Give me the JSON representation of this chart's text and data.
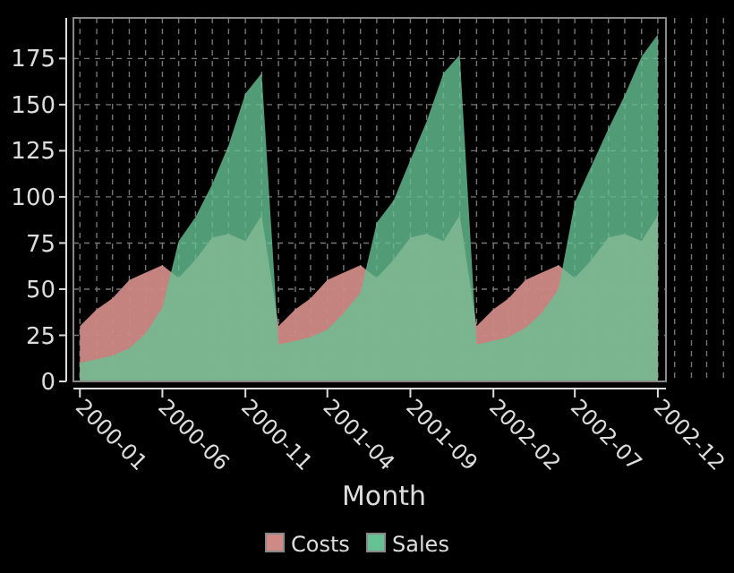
{
  "chart_data": {
    "type": "area",
    "xlabel": "Month",
    "x": [
      "2000-01",
      "2000-02",
      "2000-03",
      "2000-04",
      "2000-05",
      "2000-06",
      "2000-07",
      "2000-08",
      "2000-09",
      "2000-10",
      "2000-11",
      "2000-12",
      "2001-01",
      "2001-02",
      "2001-03",
      "2001-04",
      "2001-05",
      "2001-06",
      "2001-07",
      "2001-08",
      "2001-09",
      "2001-10",
      "2001-11",
      "2001-12",
      "2002-01",
      "2002-02",
      "2002-03",
      "2002-04",
      "2002-05",
      "2002-06",
      "2002-07",
      "2002-08",
      "2002-09",
      "2002-10",
      "2002-11",
      "2002-12"
    ],
    "series": [
      {
        "name": "Costs",
        "color": "#d08a86",
        "values": [
          30,
          39,
          45,
          55,
          59,
          63,
          56,
          66,
          78,
          80,
          76,
          90,
          30,
          39,
          45,
          55,
          59,
          63,
          56,
          66,
          78,
          80,
          76,
          90,
          30,
          39,
          45,
          55,
          59,
          63,
          56,
          66,
          78,
          80,
          76,
          90
        ]
      },
      {
        "name": "Sales",
        "color": "#66c295",
        "values": [
          10,
          12,
          14,
          18,
          26,
          40,
          76,
          89,
          107,
          128,
          156,
          167,
          20,
          22,
          24,
          28,
          37,
          48,
          86,
          98,
          120,
          141,
          167,
          177,
          20,
          22,
          24,
          29,
          37,
          50,
          97,
          117,
          137,
          155,
          176,
          188
        ]
      }
    ],
    "xlim": [
      "1999-12-20",
      "2002-12-16"
    ],
    "xticks": [
      "2000-01",
      "2000-06",
      "2000-11",
      "2001-04",
      "2001-09",
      "2002-02",
      "2002-07",
      "2002-12"
    ],
    "ylim": [
      0,
      197
    ],
    "yticks": [
      0,
      25,
      50,
      75,
      100,
      125,
      150,
      175
    ],
    "grid": true,
    "legend": "bottom"
  }
}
